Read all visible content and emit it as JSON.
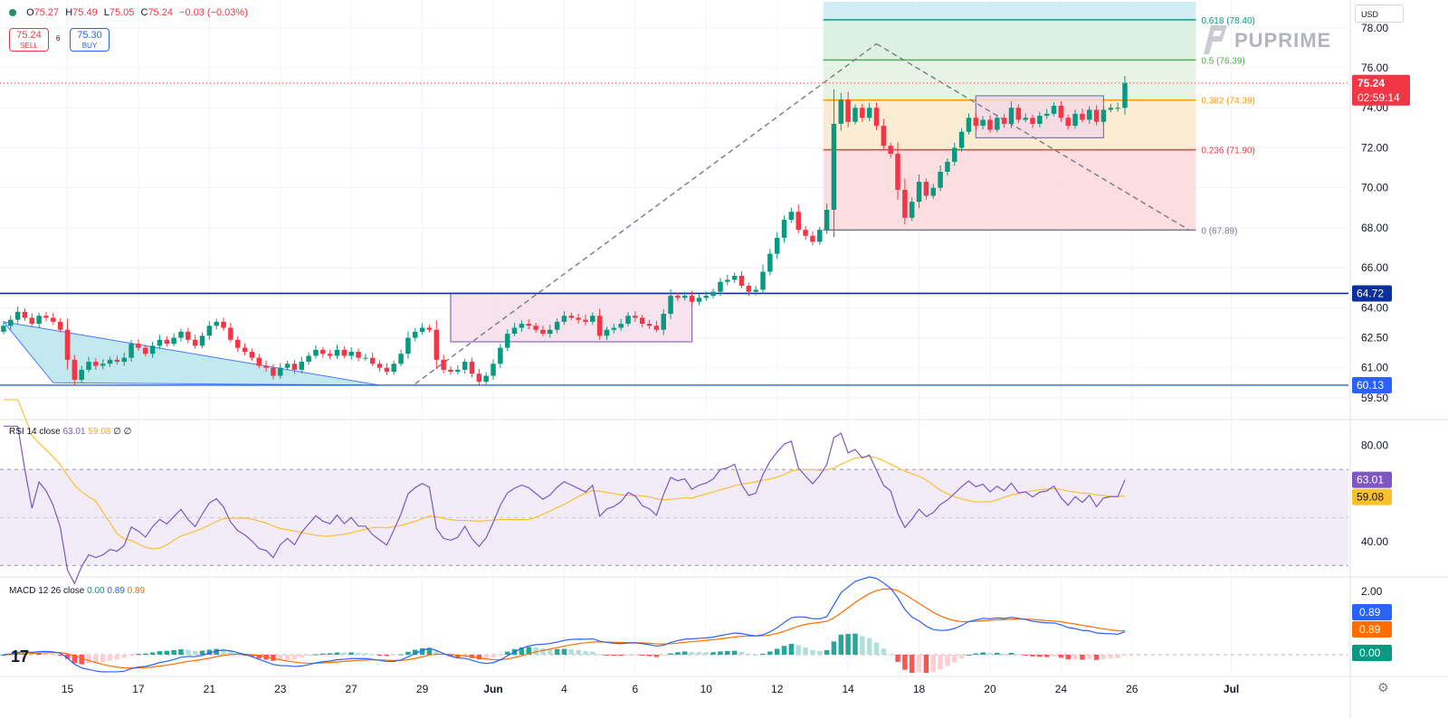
{
  "header": {
    "open_label": "O",
    "open": "75.27",
    "high_label": "H",
    "high": "75.49",
    "low_label": "L",
    "low": "75.05",
    "close_label": "C",
    "close": "75.24",
    "change": "−0.03 (−0.03%)"
  },
  "trade": {
    "sell_price": "75.24",
    "sell_label": "SELL",
    "spread": "6",
    "buy_price": "75.30",
    "buy_label": "BUY"
  },
  "currency": "USD",
  "logo_text": "PUPRIME",
  "tv_logo": "17",
  "colors": {
    "up": "#089981",
    "down": "#f23645",
    "grid": "#f0f3fa",
    "level_line": "#0c2fa0",
    "rsi": "#7e57c2",
    "rsi_ma": "#fbc02d",
    "macd": "#2962ff",
    "signal": "#ff6d00"
  },
  "chart_data": [
    {
      "type": "candlestick",
      "symbol_price_label": "75.24",
      "countdown": "02:59:14",
      "ylim": [
        58.5,
        79.3
      ],
      "y_ticks": [
        "59.50",
        "61.00",
        "62.50",
        "64.00",
        "66.00",
        "68.00",
        "70.00",
        "72.00",
        "74.00",
        "76.00",
        "78.00"
      ],
      "y_tick_values": [
        59.5,
        61,
        62.5,
        64,
        66,
        68,
        70,
        72,
        74,
        76,
        78
      ],
      "x_ticks": [
        "15",
        "17",
        "21",
        "23",
        "27",
        "29",
        "Jun",
        "4",
        "6",
        "10",
        "12",
        "14",
        "18",
        "20",
        "24",
        "26",
        "Jul"
      ],
      "x_tick_bars": [
        9,
        19,
        29,
        39,
        49,
        59,
        69,
        79,
        89,
        99,
        109,
        119,
        129,
        139,
        149,
        159,
        173
      ],
      "total_bars": 190,
      "horizontal_levels": [
        {
          "value": 64.72,
          "label": "64.72"
        },
        {
          "value": 60.13,
          "label": "60.13"
        }
      ],
      "fibonacci": {
        "start_bar": 116,
        "end_bar": 165,
        "levels": [
          {
            "ratio_label": "0.618 (78.40)",
            "value": 78.4,
            "color": "#089981"
          },
          {
            "ratio_label": "0.5 (76.39)",
            "value": 76.39,
            "color": "#4caf50"
          },
          {
            "ratio_label": "0.382 (74.39)",
            "value": 74.39,
            "color": "#ff9800"
          },
          {
            "ratio_label": "0.236 (71.90)",
            "value": 71.9,
            "color": "#f23645"
          },
          {
            "ratio_label": "0 (67.89)",
            "value": 67.89,
            "color": "#787b86"
          }
        ],
        "top_zone": 79.3
      },
      "close_series": [
        63.1,
        63.4,
        63.8,
        63.5,
        63.2,
        63.6,
        63.5,
        63.3,
        62.9,
        61.4,
        60.4,
        60.9,
        61.3,
        61.1,
        61.2,
        61.4,
        61.3,
        61.5,
        62.2,
        62.0,
        61.7,
        62.1,
        62.4,
        62.2,
        62.5,
        62.8,
        62.4,
        62.1,
        62.6,
        63.1,
        63.3,
        63.0,
        62.4,
        62.0,
        61.8,
        61.5,
        61.1,
        61.0,
        60.6,
        61.0,
        61.2,
        60.9,
        61.3,
        61.6,
        61.9,
        61.7,
        61.6,
        61.9,
        61.6,
        61.8,
        61.5,
        61.5,
        61.2,
        61.0,
        60.8,
        61.2,
        61.7,
        62.5,
        62.8,
        63.0,
        62.9,
        61.4,
        60.9,
        60.8,
        60.9,
        61.3,
        60.7,
        60.3,
        60.6,
        61.2,
        62.0,
        62.7,
        63.0,
        63.2,
        63.1,
        62.9,
        62.7,
        62.9,
        63.3,
        63.6,
        63.5,
        63.4,
        63.3,
        63.6,
        62.6,
        62.9,
        63.0,
        63.2,
        63.6,
        63.5,
        63.2,
        63.1,
        62.9,
        63.7,
        64.6,
        64.5,
        64.6,
        64.3,
        64.5,
        64.6,
        64.8,
        65.3,
        65.4,
        65.6,
        65.1,
        64.8,
        64.9,
        65.8,
        66.7,
        67.5,
        68.4,
        68.8,
        67.9,
        67.6,
        67.3,
        67.9,
        68.9,
        73.2,
        74.4,
        73.3,
        74.0,
        73.5,
        74.0,
        73.1,
        72.1,
        71.7,
        69.9,
        68.5,
        69.3,
        70.3,
        69.6,
        70.0,
        70.8,
        71.3,
        72.0,
        72.8,
        73.5,
        73.1,
        73.4,
        72.9,
        73.5,
        73.2,
        74.0,
        73.4,
        73.5,
        73.2,
        73.6,
        73.7,
        74.1,
        73.5,
        73.1,
        73.7,
        73.4,
        73.9,
        73.3,
        73.9,
        74.0,
        74.0,
        75.24
      ],
      "events": [
        {
          "bar": 9,
          "dir": "down"
        }
      ]
    },
    {
      "type": "line",
      "name": "RSI 14 close",
      "rsi_value": "63.01",
      "ma_value": "59.08",
      "extra": "∅ ∅",
      "ylim": [
        26,
        90
      ],
      "y_ticks": [
        "80.00",
        "40.00"
      ],
      "y_tick_values": [
        80,
        40
      ],
      "bands": [
        70,
        30,
        50
      ]
    },
    {
      "type": "line",
      "name": "MACD 12 26 close",
      "hist_value": "0.00",
      "macd_value": "0.89",
      "signal_value": "0.89",
      "ylim": [
        -0.6,
        2.4
      ],
      "y_ticks": [
        "2.00"
      ],
      "y_tick_values": [
        2
      ]
    }
  ]
}
